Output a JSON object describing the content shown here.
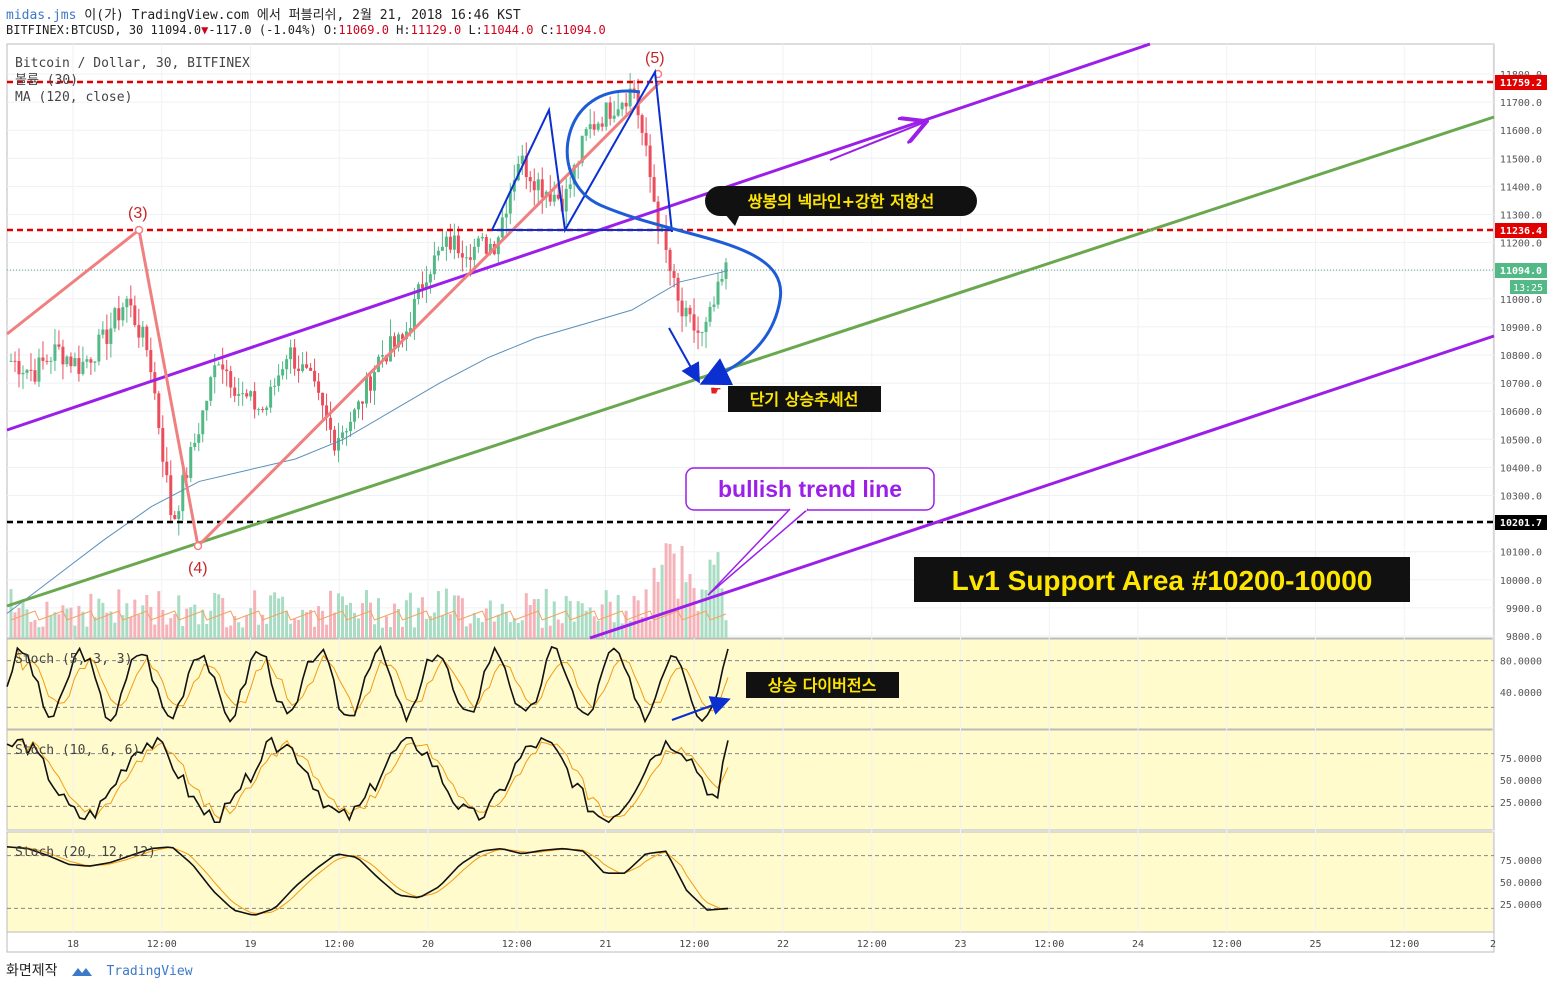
{
  "header": {
    "line1_user": "midas.jms",
    "line1_rest": " 이(가) TradingView.com 에서 퍼블리쉬, 2월 21, 2018 16:46 KST",
    "line2_symbol": "BITFINEX:BTCUSD, 30 11094.0",
    "line2_change": "-117.0 (-1.04%)",
    "line2_o_label": " O:",
    "line2_o": "11069.0",
    "line2_h_label": " H:",
    "line2_h": "11129.0",
    "line2_l_label": " L:",
    "line2_l": "11044.0",
    "line2_c_label": " C:",
    "line2_c": "11094.0"
  },
  "legend": {
    "title": "Bitcoin / Dollar, 30, BITFINEX",
    "volume": "볼륨 (30)",
    "ma": "MA (120, close)"
  },
  "annotations": {
    "wave3": "(3)",
    "wave4": "(4)",
    "wave5": "(5)",
    "neckline": "쌍봉의 넥라인+강한 저항선",
    "short_trend": "단기 상승추세선",
    "bullish": "bullish trend line",
    "support": "Lv1 Support Area #10200-10000",
    "divergence": "상승 다이버전스"
  },
  "footer": {
    "made": "화면제작",
    "brand": "TradingView"
  },
  "colors": {
    "up": "#53b987",
    "down": "#eb4d5c",
    "purple": "#9b1fe8",
    "green": "#6aa84f",
    "salmon": "#f08080",
    "blue": "#0b2fd1",
    "ma": "#5b8fb9",
    "red_dash": "#e00000",
    "stoch_bg": "#fffbcc"
  },
  "chart_data": [
    {
      "type": "candlestick",
      "title": "Bitcoin / Dollar, 30, BITFINEX",
      "y_axis_ticks": [
        9800,
        9900,
        10000,
        10100,
        10200,
        10300,
        10400,
        10500,
        10600,
        10700,
        10800,
        10900,
        11000,
        11100,
        11200,
        11300,
        11400,
        11500,
        11600,
        11700,
        11800
      ],
      "ylim": [
        9800,
        11830
      ],
      "x_axis_ticks": [
        "18",
        "12:00",
        "19",
        "12:00",
        "20",
        "12:00",
        "21",
        "12:00",
        "22",
        "12:00",
        "23",
        "12:00",
        "24",
        "12:00",
        "25",
        "12:00",
        "2"
      ],
      "price_levels": [
        {
          "value": 11759.2,
          "label": "11759.2",
          "style": "red-dashed"
        },
        {
          "value": 11236.4,
          "label": "11236.4",
          "style": "red-dashed"
        },
        {
          "value": 10201.7,
          "label": "10201.7",
          "style": "black-dashed"
        }
      ],
      "last_price": {
        "value": 11094.0,
        "label": "11094.0",
        "countdown": "13:25"
      },
      "waves": [
        {
          "label": "(3)",
          "value": 11236
        },
        {
          "label": "(4)",
          "value": 10110
        },
        {
          "label": "(5)",
          "value": 11790
        }
      ],
      "ma_120": [
        9880,
        10010,
        10140,
        10260,
        10350,
        10390,
        10430,
        10500,
        10600,
        10700,
        10790,
        10860,
        10910,
        10960,
        11060,
        11100
      ],
      "series_close": [
        10780,
        10740,
        10820,
        10760,
        10850,
        11000,
        10800,
        10200,
        10500,
        10800,
        10650,
        10600,
        10820,
        10700,
        10500,
        10600,
        10800,
        10850,
        11100,
        11200,
        11180,
        11200,
        11500,
        11400,
        11350,
        11600,
        11680,
        11750,
        11300,
        10950,
        10860,
        11100
      ]
    },
    {
      "type": "line",
      "title": "Stoch (5, 3, 3)",
      "y_axis_ticks": [
        "80.0000",
        "40.0000"
      ],
      "ylim": [
        0,
        100
      ]
    },
    {
      "type": "line",
      "title": "Stoch (10, 6, 6)",
      "y_axis_ticks": [
        "75.0000",
        "50.0000",
        "25.0000"
      ],
      "ylim": [
        0,
        100
      ]
    },
    {
      "type": "line",
      "title": "Stoch (20, 12, 12)",
      "y_axis_ticks": [
        "75.0000",
        "50.0000",
        "25.0000"
      ],
      "ylim": [
        0,
        100
      ],
      "series": [
        {
          "values": [
            90,
            88,
            80,
            70,
            68,
            72,
            80,
            88,
            90,
            70,
            40,
            18,
            12,
            20,
            45,
            65,
            82,
            78,
            55,
            35,
            32,
            45,
            70,
            85,
            88,
            82,
            86,
            88,
            85,
            60,
            60,
            82,
            85,
            40,
            18,
            20
          ]
        }
      ]
    }
  ]
}
